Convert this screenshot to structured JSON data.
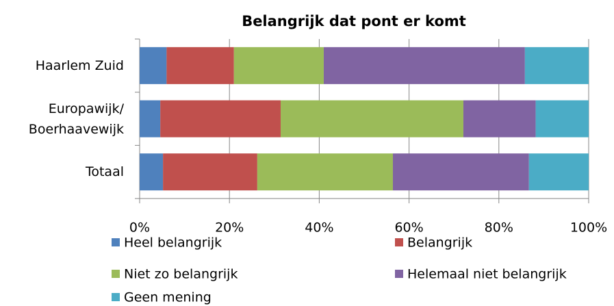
{
  "chart_data": {
    "type": "stacked-bar-horizontal",
    "title": "Belangrijk dat pont er komt",
    "categories": [
      "Haarlem Zuid",
      "Europawijk/ Boerhaavewijk",
      "Totaal"
    ],
    "series": [
      {
        "name": "Heel belangrijk",
        "color": "#4f81bd",
        "values": [
          6,
          4.6,
          5.2
        ]
      },
      {
        "name": "Belangrijk",
        "color": "#c0504d",
        "values": [
          15,
          26.8,
          21
        ]
      },
      {
        "name": "Niet zo belangrijk",
        "color": "#9bbb59",
        "values": [
          20,
          40.7,
          30.2
        ]
      },
      {
        "name": "Helemaal niet belangrijk",
        "color": "#8064a2",
        "values": [
          44.8,
          16.1,
          30.3
        ]
      },
      {
        "name": "Geen mening",
        "color": "#4bacc6",
        "values": [
          14.2,
          11.8,
          13.3
        ]
      }
    ],
    "xlim": [
      0,
      100
    ],
    "xticks": [
      {
        "value": 0,
        "label": "0%"
      },
      {
        "value": 20,
        "label": "20%"
      },
      {
        "value": 40,
        "label": "40%"
      },
      {
        "value": 60,
        "label": "60%"
      },
      {
        "value": 80,
        "label": "80%"
      },
      {
        "value": 100,
        "label": "100%"
      }
    ],
    "grid": true,
    "legend": "bottom"
  }
}
